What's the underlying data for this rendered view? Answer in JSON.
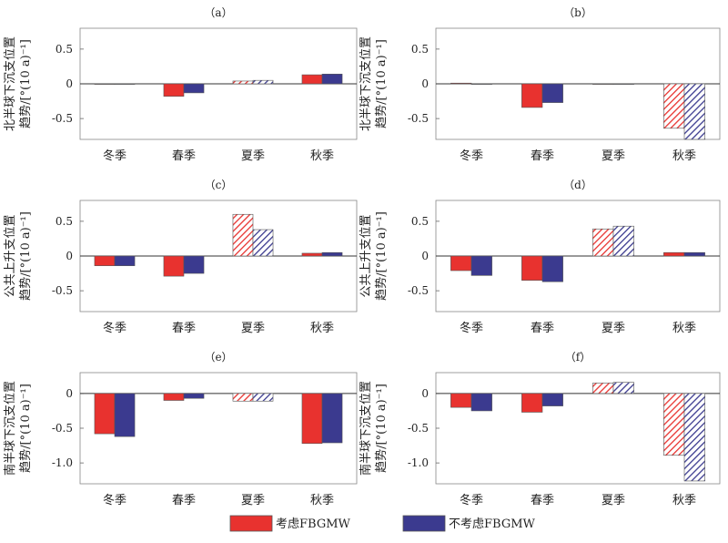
{
  "legend": {
    "items": [
      {
        "label": "考虑FBGMW",
        "color": "#e8322f"
      },
      {
        "label": "不考虑FBGMW",
        "color": "#3b3a8f"
      }
    ]
  },
  "colors": {
    "considered": "#e8322f",
    "not_considered": "#3b3a8f",
    "outline": "#555555"
  },
  "chart_data": [
    {
      "type": "bar",
      "panel": "（a）",
      "ylabel": [
        "北半球下沉支位置",
        "趋势/[°(10 a)⁻¹]"
      ],
      "categories": [
        "冬季",
        "春季",
        "夏季",
        "秋季"
      ],
      "ylim": [
        -0.8,
        0.8
      ],
      "yticks": [
        -0.5,
        0,
        0.5
      ],
      "yticklabels": [
        "-0.5",
        "0",
        "0.5"
      ],
      "series": [
        {
          "name": "考虑FBGMW",
          "values": [
            0.0,
            -0.18,
            0.04,
            0.13
          ]
        },
        {
          "name": "不考虑FBGMW",
          "values": [
            0.0,
            -0.13,
            0.05,
            0.14
          ]
        }
      ],
      "hatched": [
        false,
        false,
        true,
        false
      ]
    },
    {
      "type": "bar",
      "panel": "（b）",
      "ylabel": [
        "北半球下沉支位置",
        "趋势/[°(10 a)⁻¹]"
      ],
      "categories": [
        "冬季",
        "春季",
        "夏季",
        "秋季"
      ],
      "ylim": [
        -0.8,
        0.8
      ],
      "yticks": [
        -0.5,
        0,
        0.5
      ],
      "yticklabels": [
        "-0.5",
        "0",
        "0.5"
      ],
      "series": [
        {
          "name": "考虑FBGMW",
          "values": [
            0.01,
            -0.34,
            0.0,
            -0.64
          ]
        },
        {
          "name": "不考虑FBGMW",
          "values": [
            0.0,
            -0.27,
            0.0,
            -0.8
          ]
        }
      ],
      "hatched": [
        false,
        false,
        false,
        true
      ]
    },
    {
      "type": "bar",
      "panel": "（c）",
      "ylabel": [
        "公共上升支位置",
        "趋势/[°(10 a)⁻¹]"
      ],
      "categories": [
        "冬季",
        "春季",
        "夏季",
        "秋季"
      ],
      "ylim": [
        -0.8,
        0.8
      ],
      "yticks": [
        -0.5,
        0,
        0.5
      ],
      "yticklabels": [
        "-0.5",
        "0",
        "0.5"
      ],
      "series": [
        {
          "name": "考虑FBGMW",
          "values": [
            -0.14,
            -0.29,
            0.6,
            0.04
          ]
        },
        {
          "name": "不考虑FBGMW",
          "values": [
            -0.14,
            -0.25,
            0.38,
            0.05
          ]
        }
      ],
      "hatched": [
        false,
        false,
        true,
        false
      ]
    },
    {
      "type": "bar",
      "panel": "（d）",
      "ylabel": [
        "公共上升支位置",
        "趋势/[°(10 a)⁻¹]"
      ],
      "categories": [
        "冬季",
        "春季",
        "夏季",
        "秋季"
      ],
      "ylim": [
        -0.8,
        0.8
      ],
      "yticks": [
        -0.5,
        0,
        0.5
      ],
      "yticklabels": [
        "-0.5",
        "0",
        "0.5"
      ],
      "series": [
        {
          "name": "考虑FBGMW",
          "values": [
            -0.21,
            -0.35,
            0.39,
            0.05
          ]
        },
        {
          "name": "不考虑FBGMW",
          "values": [
            -0.28,
            -0.37,
            0.43,
            0.05
          ]
        }
      ],
      "hatched": [
        false,
        false,
        true,
        false
      ]
    },
    {
      "type": "bar",
      "panel": "（e）",
      "ylabel": [
        "南半球下沉支位置",
        "趋势/[°(10 a)⁻¹]"
      ],
      "categories": [
        "冬季",
        "春季",
        "夏季",
        "秋季"
      ],
      "ylim": [
        -1.3,
        0.3
      ],
      "yticks": [
        -1.0,
        -0.5,
        0
      ],
      "yticklabels": [
        "-1.0",
        "-0.5",
        "0"
      ],
      "series": [
        {
          "name": "考虑FBGMW",
          "values": [
            -0.58,
            -0.1,
            -0.11,
            -0.72
          ]
        },
        {
          "name": "不考虑FBGMW",
          "values": [
            -0.62,
            -0.07,
            -0.11,
            -0.71
          ]
        }
      ],
      "hatched": [
        false,
        false,
        true,
        false
      ]
    },
    {
      "type": "bar",
      "panel": "（f）",
      "ylabel": [
        "南半球下沉支位置",
        "趋势/[°(10 a)⁻¹]"
      ],
      "categories": [
        "冬季",
        "春季",
        "夏季",
        "秋季"
      ],
      "ylim": [
        -1.3,
        0.3
      ],
      "yticks": [
        -1.0,
        -0.5,
        0
      ],
      "yticklabels": [
        "-1.0",
        "-0.5",
        "0"
      ],
      "series": [
        {
          "name": "考虑FBGMW",
          "values": [
            -0.2,
            -0.27,
            0.15,
            -0.89
          ]
        },
        {
          "name": "不考虑FBGMW",
          "values": [
            -0.25,
            -0.18,
            0.16,
            -1.26
          ]
        }
      ],
      "hatched": [
        false,
        false,
        true,
        true
      ]
    }
  ]
}
